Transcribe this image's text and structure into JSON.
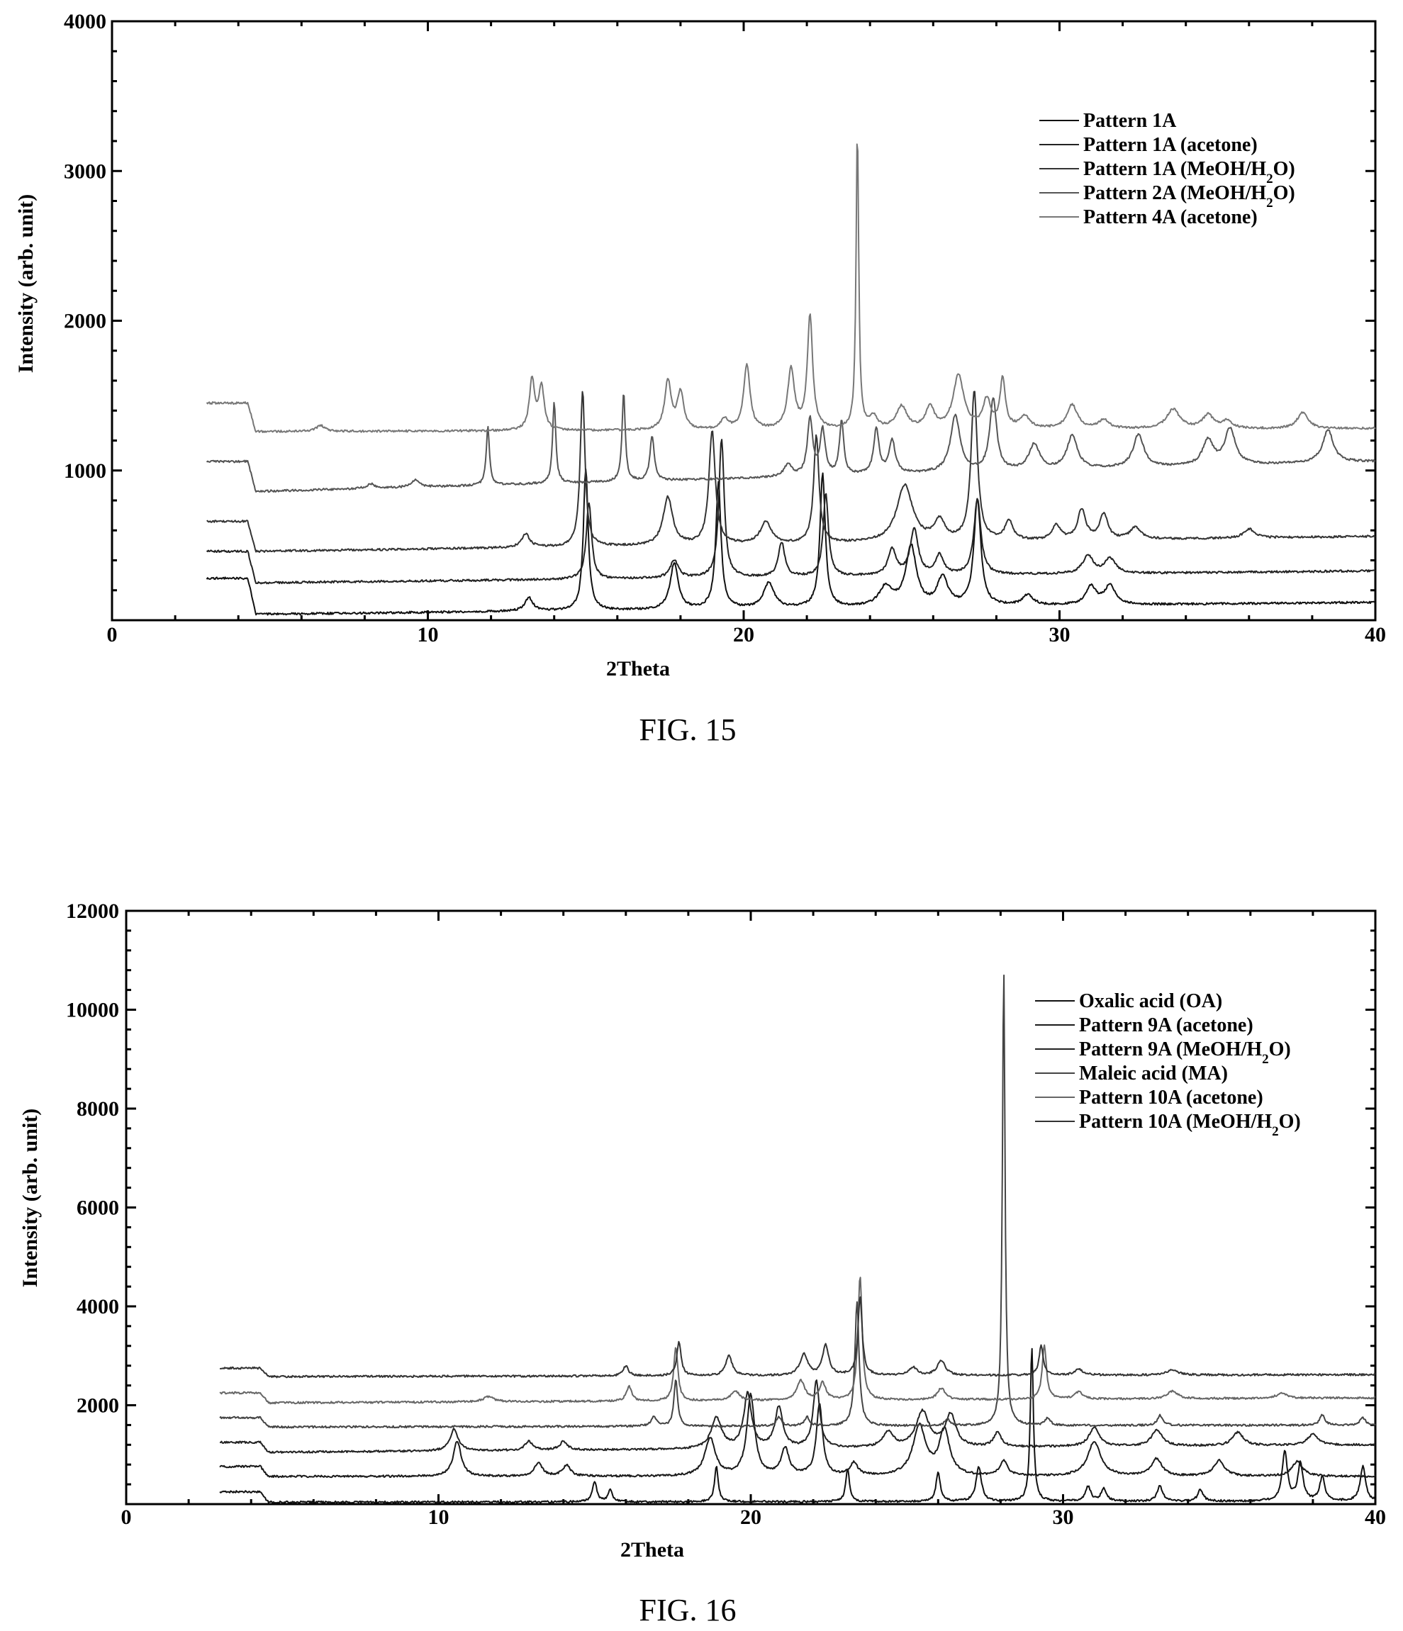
{
  "chart_data": [
    {
      "type": "line",
      "caption": "FIG. 15",
      "xlabel": "2Theta",
      "ylabel": "Intensity (arb. unit)",
      "xlim": [
        0,
        40
      ],
      "ylim": [
        0,
        4000
      ],
      "xticks": [
        0,
        10,
        20,
        30,
        40
      ],
      "yticks": [
        1000,
        2000,
        3000,
        4000
      ],
      "grid": false,
      "legend_position": "top-right",
      "series": [
        {
          "name": "Pattern 1A",
          "color": "#111111",
          "start": [
            3.0,
            280
          ],
          "plateau_end": 4.3,
          "baseline": 40,
          "end": 120,
          "peaks": [
            [
              13.2,
              90,
              0.15
            ],
            [
              15.0,
              950,
              0.09
            ],
            [
              17.8,
              310,
              0.15
            ],
            [
              19.2,
              840,
              0.1
            ],
            [
              20.8,
              170,
              0.2
            ],
            [
              22.5,
              900,
              0.1
            ],
            [
              24.5,
              130,
              0.25
            ],
            [
              25.3,
              400,
              0.2
            ],
            [
              26.3,
              190,
              0.2
            ],
            [
              27.4,
              710,
              0.13
            ],
            [
              29.0,
              70,
              0.2
            ],
            [
              31.0,
              120,
              0.2
            ],
            [
              31.6,
              130,
              0.2
            ]
          ]
        },
        {
          "name": "Pattern 1A (acetone)",
          "color": "#222222",
          "start": [
            3.0,
            460
          ],
          "plateau_end": 4.3,
          "baseline": 250,
          "end": 330,
          "peaks": [
            [
              15.1,
              510,
              0.1
            ],
            [
              17.8,
              120,
              0.15
            ],
            [
              19.3,
              930,
              0.1
            ],
            [
              21.2,
              230,
              0.12
            ],
            [
              22.6,
              550,
              0.1
            ],
            [
              24.7,
              170,
              0.15
            ],
            [
              25.4,
              310,
              0.15
            ],
            [
              26.2,
              130,
              0.15
            ],
            [
              27.4,
              510,
              0.13
            ],
            [
              30.9,
              120,
              0.2
            ],
            [
              31.6,
              100,
              0.2
            ]
          ]
        },
        {
          "name": "Pattern 1A (MeOH/H2O)",
          "color": "#333333",
          "start": [
            3.0,
            660
          ],
          "plateau_end": 4.3,
          "baseline": 460,
          "end": 560,
          "peaks": [
            [
              13.1,
              90,
              0.15
            ],
            [
              14.9,
              1040,
              0.09
            ],
            [
              17.6,
              320,
              0.18
            ],
            [
              19.0,
              760,
              0.12
            ],
            [
              20.7,
              150,
              0.2
            ],
            [
              22.3,
              720,
              0.1
            ],
            [
              25.1,
              380,
              0.3
            ],
            [
              26.2,
              130,
              0.2
            ],
            [
              27.3,
              1000,
              0.12
            ],
            [
              28.4,
              130,
              0.15
            ],
            [
              29.9,
              100,
              0.15
            ],
            [
              30.7,
              200,
              0.15
            ],
            [
              31.4,
              170,
              0.15
            ],
            [
              32.4,
              80,
              0.2
            ],
            [
              36.0,
              60,
              0.2
            ]
          ]
        },
        {
          "name": "Pattern 2A (MeOH/H2O)",
          "color": "#555555",
          "start": [
            3.0,
            1060
          ],
          "plateau_end": 4.3,
          "baseline": 860,
          "end": 1060,
          "peaks": [
            [
              8.2,
              30,
              0.15
            ],
            [
              9.6,
              50,
              0.15
            ],
            [
              11.9,
              390,
              0.06
            ],
            [
              14.0,
              550,
              0.06
            ],
            [
              16.2,
              600,
              0.06
            ],
            [
              17.1,
              300,
              0.08
            ],
            [
              21.4,
              80,
              0.15
            ],
            [
              22.1,
              380,
              0.1
            ],
            [
              22.5,
              300,
              0.1
            ],
            [
              23.1,
              360,
              0.08
            ],
            [
              24.2,
              300,
              0.1
            ],
            [
              24.7,
              220,
              0.12
            ],
            [
              26.7,
              380,
              0.18
            ],
            [
              27.9,
              480,
              0.13
            ],
            [
              29.2,
              170,
              0.2
            ],
            [
              30.4,
              220,
              0.2
            ],
            [
              32.5,
              220,
              0.2
            ],
            [
              34.7,
              170,
              0.2
            ],
            [
              35.4,
              240,
              0.2
            ],
            [
              38.5,
              220,
              0.2
            ]
          ]
        },
        {
          "name": "Pattern 4A (acetone)",
          "color": "#777777",
          "start": [
            3.0,
            1450
          ],
          "plateau_end": 4.3,
          "baseline": 1260,
          "end": 1280,
          "peaks": [
            [
              6.6,
              40,
              0.15
            ],
            [
              13.3,
              340,
              0.1
            ],
            [
              13.6,
              290,
              0.1
            ],
            [
              17.6,
              330,
              0.12
            ],
            [
              18.0,
              250,
              0.12
            ],
            [
              19.4,
              70,
              0.15
            ],
            [
              20.1,
              430,
              0.12
            ],
            [
              21.5,
              400,
              0.13
            ],
            [
              22.1,
              760,
              0.1
            ],
            [
              23.6,
              2000,
              0.05
            ],
            [
              24.1,
              80,
              0.15
            ],
            [
              25.0,
              150,
              0.2
            ],
            [
              25.9,
              150,
              0.15
            ],
            [
              26.8,
              360,
              0.2
            ],
            [
              27.7,
              190,
              0.15
            ],
            [
              28.2,
              330,
              0.1
            ],
            [
              28.9,
              80,
              0.2
            ],
            [
              30.4,
              160,
              0.2
            ],
            [
              31.4,
              60,
              0.2
            ],
            [
              33.6,
              130,
              0.25
            ],
            [
              34.7,
              90,
              0.2
            ],
            [
              35.3,
              50,
              0.2
            ],
            [
              37.7,
              110,
              0.2
            ]
          ]
        }
      ]
    },
    {
      "type": "line",
      "caption": "FIG. 16",
      "xlabel": "2Theta",
      "ylabel": "Intensity (arb. unit)",
      "xlim": [
        0,
        40
      ],
      "ylim": [
        0,
        12000
      ],
      "xticks": [
        0,
        10,
        20,
        30,
        40
      ],
      "yticks": [
        2000,
        4000,
        6000,
        8000,
        10000,
        12000
      ],
      "grid": false,
      "legend_position": "top-right",
      "series": [
        {
          "name": "Oxalic acid (OA)",
          "color": "#111111",
          "start": [
            3.0,
            250
          ],
          "plateau_end": 4.3,
          "baseline": 40,
          "end": 60,
          "peaks": [
            [
              15.0,
              420,
              0.08
            ],
            [
              15.5,
              250,
              0.08
            ],
            [
              18.9,
              720,
              0.07
            ],
            [
              23.1,
              680,
              0.07
            ],
            [
              26.0,
              600,
              0.08
            ],
            [
              27.3,
              700,
              0.1
            ],
            [
              29.0,
              3100,
              0.06
            ],
            [
              30.8,
              300,
              0.1
            ],
            [
              31.3,
              260,
              0.1
            ],
            [
              33.1,
              320,
              0.1
            ],
            [
              34.4,
              240,
              0.1
            ],
            [
              37.1,
              1000,
              0.1
            ],
            [
              37.6,
              750,
              0.1
            ],
            [
              38.3,
              480,
              0.1
            ],
            [
              39.6,
              700,
              0.1
            ]
          ]
        },
        {
          "name": "Pattern 9A (acetone)",
          "color": "#1a1a1a",
          "start": [
            3.0,
            760
          ],
          "plateau_end": 4.3,
          "baseline": 560,
          "end": 560,
          "peaks": [
            [
              10.6,
              720,
              0.15
            ],
            [
              13.2,
              280,
              0.15
            ],
            [
              14.1,
              220,
              0.15
            ],
            [
              18.7,
              760,
              0.2
            ],
            [
              20.0,
              1630,
              0.15
            ],
            [
              21.1,
              550,
              0.15
            ],
            [
              22.2,
              1440,
              0.12
            ],
            [
              23.3,
              250,
              0.15
            ],
            [
              25.4,
              1000,
              0.25
            ],
            [
              26.2,
              900,
              0.2
            ],
            [
              28.1,
              300,
              0.15
            ],
            [
              31.0,
              700,
              0.25
            ],
            [
              33.0,
              350,
              0.2
            ],
            [
              35.0,
              320,
              0.2
            ],
            [
              37.5,
              300,
              0.2
            ]
          ]
        },
        {
          "name": "Pattern 9A (MeOH/H2O)",
          "color": "#222222",
          "start": [
            3.0,
            1250
          ],
          "plateau_end": 4.3,
          "baseline": 1050,
          "end": 1200,
          "peaks": [
            [
              10.5,
              450,
              0.15
            ],
            [
              12.9,
              180,
              0.15
            ],
            [
              14.0,
              170,
              0.15
            ],
            [
              18.9,
              620,
              0.2
            ],
            [
              19.9,
              1100,
              0.15
            ],
            [
              20.9,
              820,
              0.15
            ],
            [
              22.1,
              1350,
              0.12
            ],
            [
              24.4,
              300,
              0.2
            ],
            [
              25.5,
              720,
              0.25
            ],
            [
              26.4,
              650,
              0.2
            ],
            [
              27.9,
              280,
              0.15
            ],
            [
              31.0,
              380,
              0.2
            ],
            [
              33.0,
              330,
              0.2
            ],
            [
              35.6,
              270,
              0.2
            ],
            [
              38.0,
              220,
              0.2
            ]
          ]
        },
        {
          "name": "Maleic acid (MA)",
          "color": "#444444",
          "start": [
            3.0,
            1750
          ],
          "plateau_end": 4.3,
          "baseline": 1560,
          "end": 1600,
          "peaks": [
            [
              16.9,
              200,
              0.1
            ],
            [
              17.6,
              950,
              0.07
            ],
            [
              20.9,
              180,
              0.1
            ],
            [
              21.8,
              180,
              0.1
            ],
            [
              23.4,
              2500,
              0.08
            ],
            [
              26.3,
              130,
              0.1
            ],
            [
              28.1,
              9300,
              0.05
            ],
            [
              29.5,
              150,
              0.1
            ],
            [
              33.1,
              200,
              0.1
            ],
            [
              38.3,
              200,
              0.1
            ],
            [
              39.6,
              150,
              0.1
            ]
          ]
        },
        {
          "name": "Pattern 10A (acetone)",
          "color": "#666666",
          "start": [
            3.0,
            2250
          ],
          "plateau_end": 4.3,
          "baseline": 2050,
          "end": 2150,
          "peaks": [
            [
              11.6,
              100,
              0.2
            ],
            [
              16.1,
              300,
              0.1
            ],
            [
              17.6,
              1100,
              0.08
            ],
            [
              19.5,
              200,
              0.15
            ],
            [
              21.6,
              400,
              0.15
            ],
            [
              22.3,
              350,
              0.12
            ],
            [
              23.5,
              2500,
              0.08
            ],
            [
              26.1,
              230,
              0.15
            ],
            [
              29.4,
              1100,
              0.08
            ],
            [
              30.5,
              150,
              0.15
            ],
            [
              33.5,
              150,
              0.2
            ],
            [
              37.0,
              100,
              0.2
            ]
          ]
        },
        {
          "name": "Pattern 10A (MeOH/H2O)",
          "color": "#333333",
          "start": [
            3.0,
            2750
          ],
          "plateau_end": 4.3,
          "baseline": 2580,
          "end": 2620,
          "peaks": [
            [
              16.0,
              200,
              0.1
            ],
            [
              17.7,
              700,
              0.08
            ],
            [
              19.3,
              420,
              0.12
            ],
            [
              21.7,
              420,
              0.15
            ],
            [
              22.4,
              600,
              0.12
            ],
            [
              23.5,
              1600,
              0.08
            ],
            [
              25.2,
              160,
              0.15
            ],
            [
              26.1,
              300,
              0.15
            ],
            [
              29.3,
              600,
              0.08
            ],
            [
              30.5,
              130,
              0.15
            ],
            [
              33.5,
              100,
              0.2
            ]
          ]
        }
      ]
    }
  ]
}
